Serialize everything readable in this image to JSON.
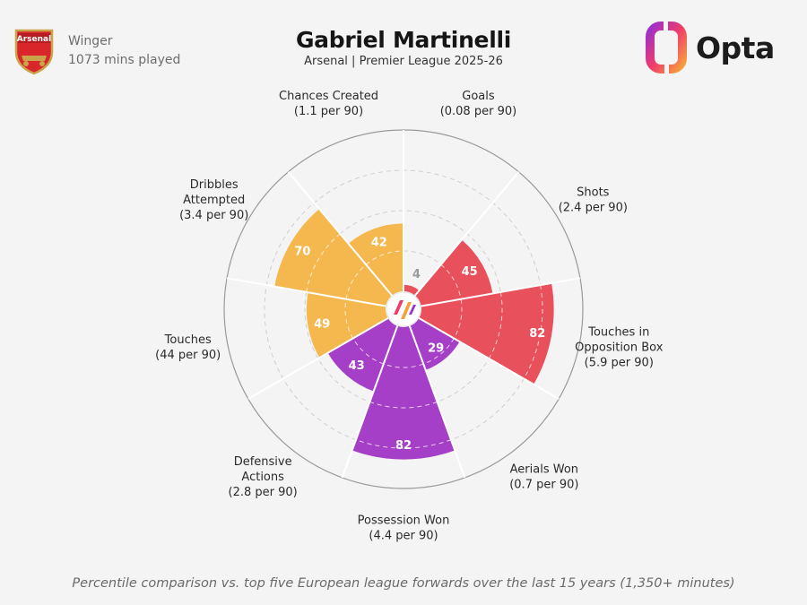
{
  "header": {
    "position": "Winger",
    "minutes": "1073 mins played",
    "title": "Gabriel Martinelli",
    "subtitle": "Arsenal | Premier League 2025-26",
    "crest_text": "Arsenal",
    "brand": "Opta"
  },
  "chart_data": {
    "type": "polar_bar",
    "rlim": [
      0,
      100
    ],
    "grid": true,
    "categories": [
      {
        "name": "Goals",
        "per90": "(0.08 per 90)",
        "value": 4,
        "color": "#e8505b"
      },
      {
        "name": "Shots",
        "per90": "(2.4 per 90)",
        "value": 45,
        "color": "#e8505b"
      },
      {
        "name": "Touches in Opposition Box",
        "lines": [
          "Touches in",
          "Opposition Box"
        ],
        "per90": "(5.9 per 90)",
        "value": 82,
        "color": "#e8505b"
      },
      {
        "name": "Aerials Won",
        "per90": "(0.7 per 90)",
        "value": 29,
        "color": "#a63fc7"
      },
      {
        "name": "Possession Won",
        "per90": "(4.4 per 90)",
        "value": 82,
        "color": "#a63fc7"
      },
      {
        "name": "Defensive Actions",
        "lines": [
          "Defensive",
          "Actions"
        ],
        "per90": "(2.8 per 90)",
        "value": 43,
        "color": "#a63fc7"
      },
      {
        "name": "Touches",
        "per90": "(44 per 90)",
        "value": 49,
        "color": "#f5b84e"
      },
      {
        "name": "Dribbles Attempted",
        "lines": [
          "Dribbles",
          "Attempted"
        ],
        "per90": "(3.4 per 90)",
        "value": 70,
        "color": "#f5b84e"
      },
      {
        "name": "Chances Created",
        "per90": "(1.1 per 90)",
        "value": 42,
        "color": "#f5b84e"
      }
    ]
  },
  "footnote": "Percentile comparison vs. top five European league forwards over the last 15 years (1,350+ minutes)"
}
